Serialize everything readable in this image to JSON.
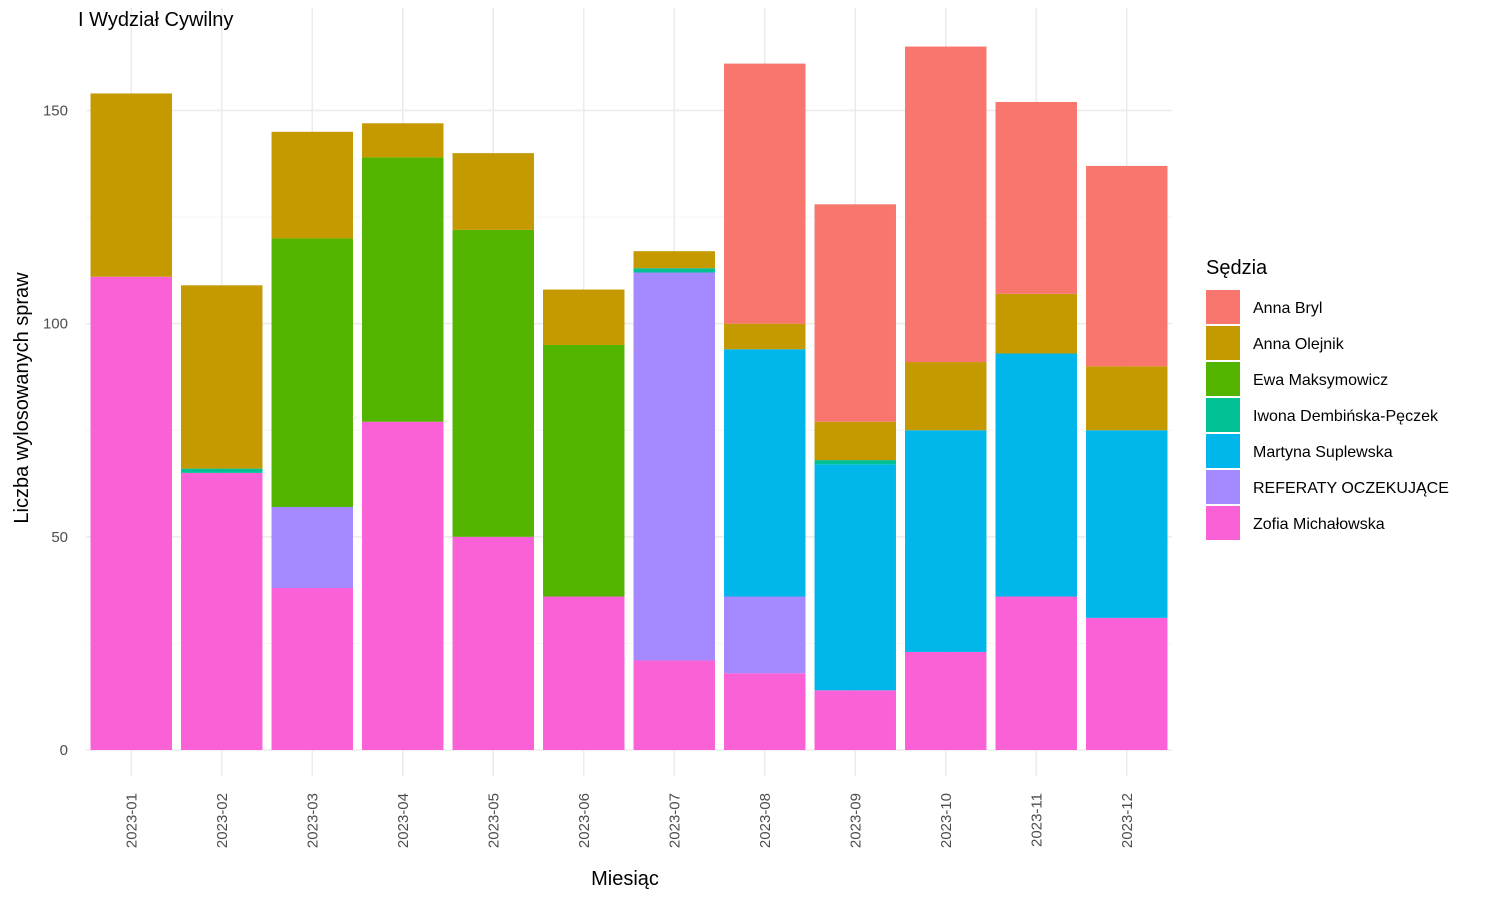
{
  "chart_data": {
    "type": "bar",
    "stacked": true,
    "title": "I Wydział Cywilny",
    "xlabel": "Miesiąc",
    "ylabel": "Liczba wylosowanych spraw",
    "ylim": [
      0,
      165
    ],
    "yticks": [
      0,
      50,
      100,
      150
    ],
    "grid": true,
    "legend_title": "Sędzia",
    "legend_position": "right",
    "categories": [
      "2023-01",
      "2023-02",
      "2023-03",
      "2023-04",
      "2023-05",
      "2023-06",
      "2023-07",
      "2023-08",
      "2023-09",
      "2023-10",
      "2023-11",
      "2023-12"
    ],
    "series": [
      {
        "name": "Anna Bryl",
        "color": "#F8766D",
        "values": [
          0,
          0,
          0,
          0,
          0,
          0,
          0,
          61,
          51,
          74,
          45,
          47
        ]
      },
      {
        "name": "Anna Olejnik",
        "color": "#C49A00",
        "values": [
          43,
          43,
          25,
          8,
          18,
          13,
          4,
          6,
          9,
          16,
          14,
          15
        ]
      },
      {
        "name": "Ewa Maksymowicz",
        "color": "#53B400",
        "values": [
          0,
          0,
          63,
          62,
          72,
          59,
          0,
          0,
          0,
          0,
          0,
          0
        ]
      },
      {
        "name": "Iwona Dembińska-Pęczek",
        "color": "#00C094",
        "values": [
          0,
          1,
          0,
          0,
          0,
          0,
          1,
          0,
          1,
          0,
          0,
          0
        ]
      },
      {
        "name": "Martyna Suplewska",
        "color": "#00B6EB",
        "values": [
          0,
          0,
          0,
          0,
          0,
          0,
          0,
          58,
          53,
          52,
          57,
          44
        ]
      },
      {
        "name": "REFERATY OCZEKUJĄCE",
        "color": "#A58AFF",
        "values": [
          0,
          0,
          19,
          0,
          0,
          0,
          91,
          18,
          0,
          0,
          0,
          0
        ]
      },
      {
        "name": "Zofia Michałowska",
        "color": "#FB61D7",
        "values": [
          111,
          65,
          38,
          77,
          50,
          36,
          21,
          18,
          14,
          23,
          36,
          31
        ]
      }
    ]
  }
}
